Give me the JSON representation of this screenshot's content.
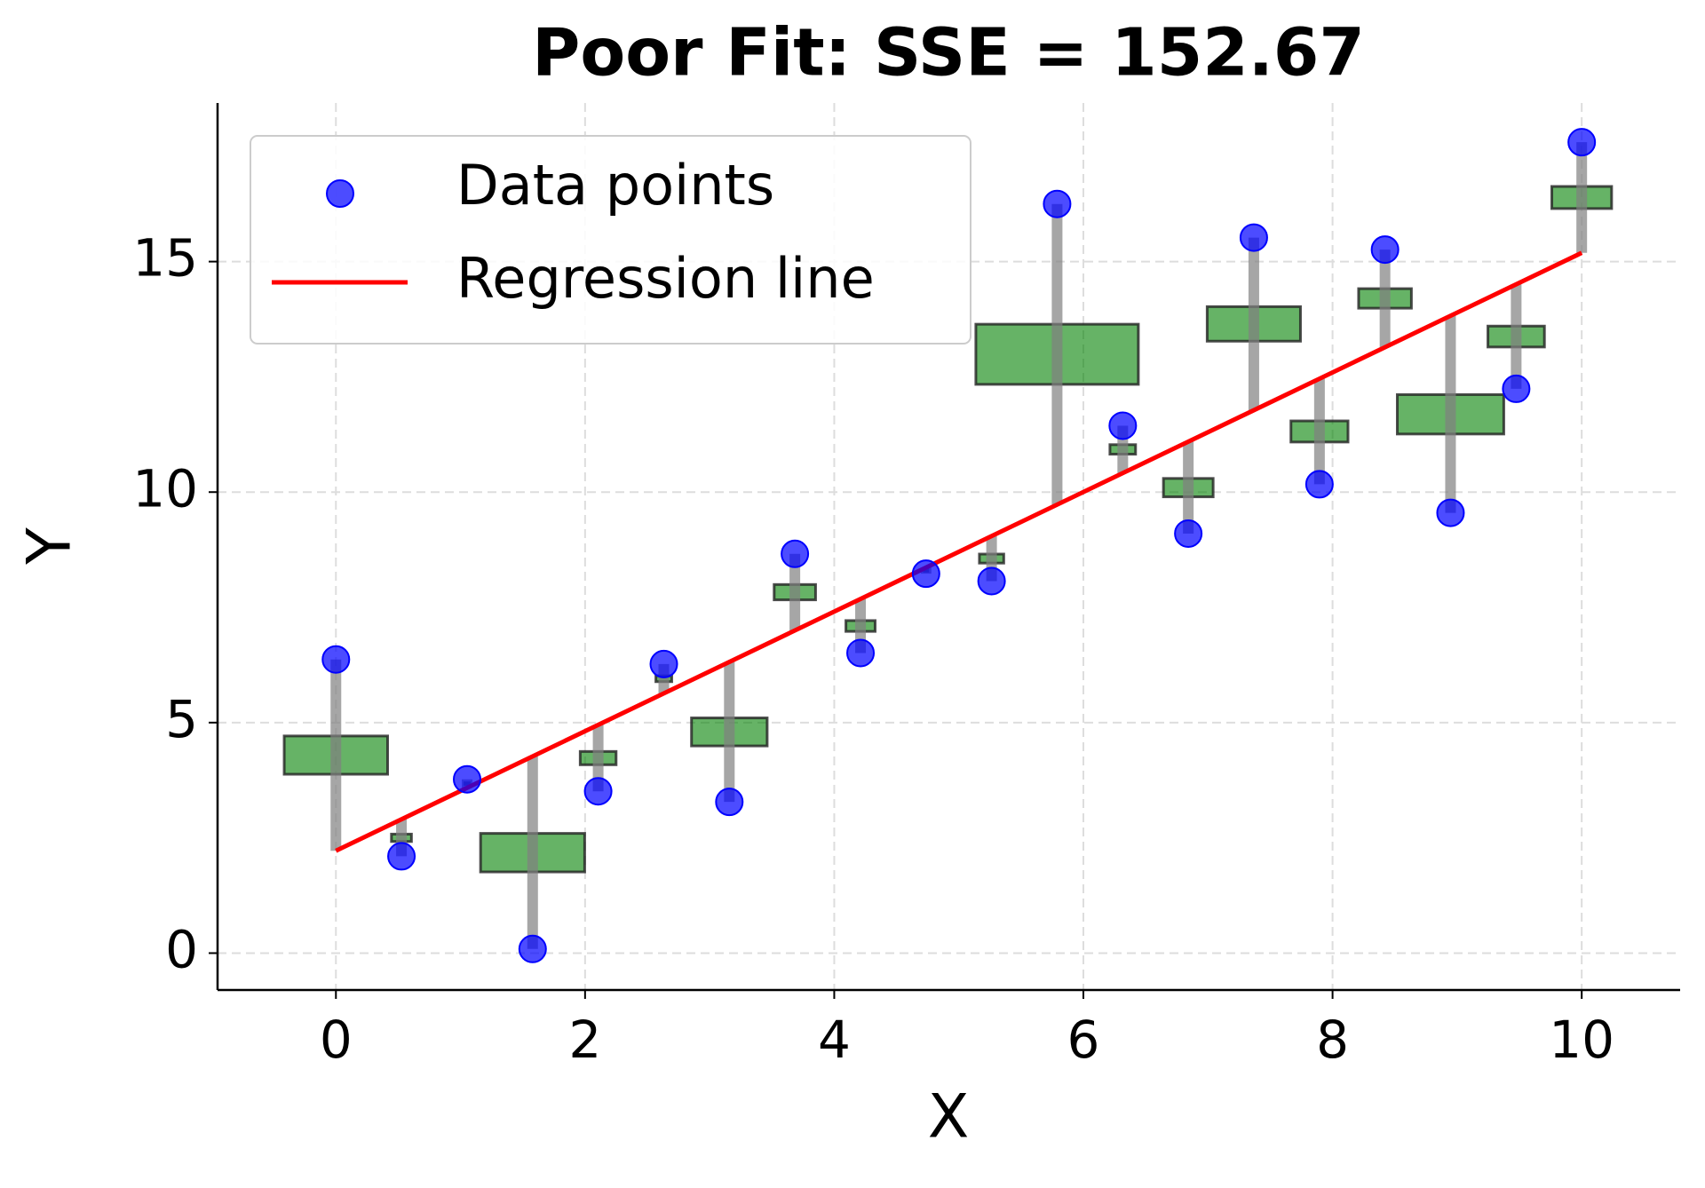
{
  "chart_data": {
    "type": "scatter",
    "title": "Poor Fit: SSE = 152.67",
    "xlabel": "X",
    "ylabel": "Y",
    "series": [
      {
        "name": "Data points",
        "color": "blue",
        "x": [
          0,
          0.526,
          1.053,
          1.579,
          2.105,
          2.632,
          3.158,
          3.684,
          4.211,
          4.737,
          5.263,
          5.789,
          6.316,
          6.842,
          7.368,
          7.895,
          8.421,
          8.947,
          9.474,
          10
        ],
        "values": [
          6.37,
          2.1,
          3.77,
          0.09,
          3.51,
          6.27,
          3.28,
          8.66,
          6.51,
          8.23,
          8.07,
          16.25,
          11.44,
          9.1,
          15.52,
          10.17,
          15.26,
          9.55,
          12.24,
          17.59
        ]
      },
      {
        "name": "Regression line",
        "color": "red",
        "x": [
          0,
          10
        ],
        "values": [
          2.22,
          15.19
        ]
      }
    ],
    "residual_color": "gray",
    "square_color": "green",
    "xlim": [
      -0.95,
      10.79
    ],
    "ylim": [
      -0.8,
      18.44
    ],
    "xticks": [
      0,
      2,
      4,
      6,
      8,
      10
    ],
    "yticks": [
      0,
      5,
      10,
      15
    ],
    "grid": true,
    "legend": "upper left"
  }
}
